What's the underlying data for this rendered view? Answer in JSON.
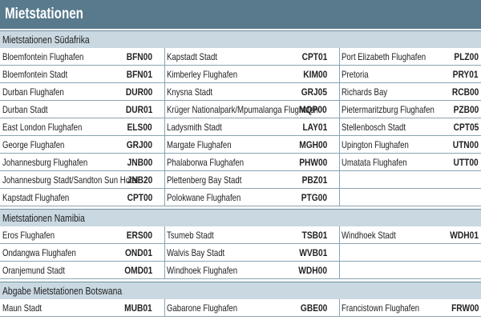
{
  "header": {
    "title": "Mietstationen"
  },
  "sections": [
    {
      "title": "Mietstationen Südafrika",
      "rows": [
        [
          {
            "name": "Bloemfontein Flughafen",
            "code": "BFN00"
          },
          {
            "name": "Kapstadt Stadt",
            "code": "CPT01"
          },
          {
            "name": "Port Elizabeth Flughafen",
            "code": "PLZ00"
          }
        ],
        [
          {
            "name": "Bloemfontein Stadt",
            "code": "BFN01"
          },
          {
            "name": "Kimberley Flughafen",
            "code": "KIM00"
          },
          {
            "name": "Pretoria",
            "code": "PRY01"
          }
        ],
        [
          {
            "name": "Durban Flughafen",
            "code": "DUR00"
          },
          {
            "name": "Knysna Stadt",
            "code": "GRJ05"
          },
          {
            "name": "Richards Bay",
            "code": "RCB00"
          }
        ],
        [
          {
            "name": "Durban Stadt",
            "code": "DUR01"
          },
          {
            "name": "Krüger Nationalpark/Mpumalanga Flughafen",
            "code": "MQP00"
          },
          {
            "name": "Pietermaritzburg Flughafen",
            "code": "PZB00"
          }
        ],
        [
          {
            "name": "East London Flughafen",
            "code": "ELS00"
          },
          {
            "name": "Ladysmith Stadt",
            "code": "LAY01"
          },
          {
            "name": "Stellenbosch Stadt",
            "code": "CPT05"
          }
        ],
        [
          {
            "name": "George Flughafen",
            "code": "GRJ00"
          },
          {
            "name": "Margate Flughafen",
            "code": "MGH00"
          },
          {
            "name": "Upington Flughafen",
            "code": "UTN00"
          }
        ],
        [
          {
            "name": "Johannesburg Flughafen",
            "code": "JNB00"
          },
          {
            "name": "Phalaborwa Flughafen",
            "code": "PHW00"
          },
          {
            "name": "Umatata Flughafen",
            "code": "UTT00"
          }
        ],
        [
          {
            "name": "Johannesburg Stadt/Sandton Sun Hotel",
            "code": "JNB20"
          },
          {
            "name": "Plettenberg Bay Stadt",
            "code": "PBZ01"
          }
        ],
        [
          {
            "name": "Kapstadt Flughafen",
            "code": "CPT00"
          },
          {
            "name": "Polokwane Flughafen",
            "code": "PTG00"
          }
        ]
      ]
    },
    {
      "title": "Mietstationen Namibia",
      "rows": [
        [
          {
            "name": "Eros Flughafen",
            "code": "ERS00"
          },
          {
            "name": "Tsumeb Stadt",
            "code": "TSB01"
          },
          {
            "name": "Windhoek Stadt",
            "code": "WDH01"
          }
        ],
        [
          {
            "name": "Ondangwa Flughafen",
            "code": "OND01"
          },
          {
            "name": "Walvis Bay Stadt",
            "code": "WVB01"
          }
        ],
        [
          {
            "name": "Oranjemund Stadt",
            "code": "OMD01"
          },
          {
            "name": "Windhoek Flughafen",
            "code": "WDH00"
          }
        ]
      ]
    },
    {
      "title": "Abgabe Mietstationen Botswana",
      "rows": [
        [
          {
            "name": "Maun Stadt",
            "code": "MUB01"
          },
          {
            "name": "Gabarone Flughafen",
            "code": "GBE00"
          },
          {
            "name": "Francistown Flughafen",
            "code": "FRW00"
          }
        ]
      ]
    }
  ]
}
